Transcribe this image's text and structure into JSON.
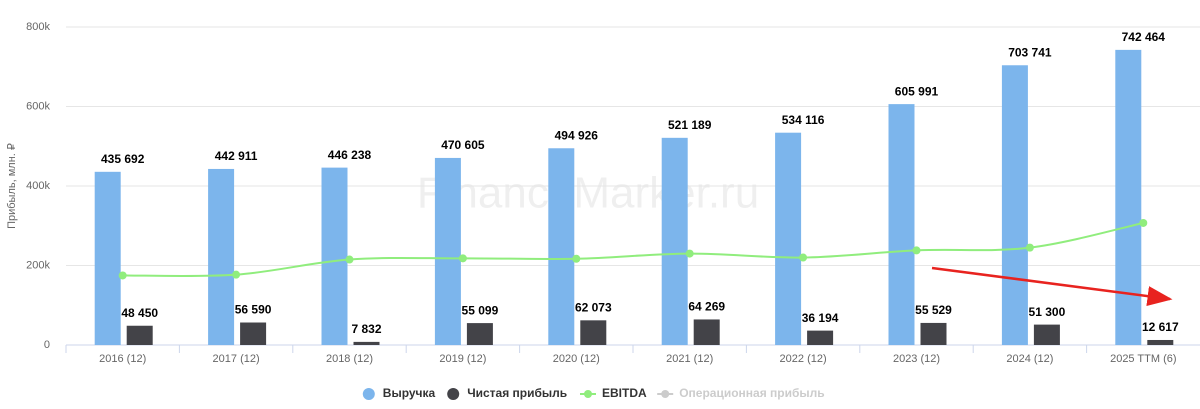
{
  "chart_data": {
    "type": "bar",
    "watermark": "FinanceMarker.ru",
    "y_label": "Прибыль, млн. ₽",
    "categories": [
      "2016 (12)",
      "2017 (12)",
      "2018 (12)",
      "2019 (12)",
      "2020 (12)",
      "2021 (12)",
      "2022 (12)",
      "2023 (12)",
      "2024 (12)",
      "2025 TTM (6)"
    ],
    "series": [
      {
        "name": "Выручка",
        "type": "bar",
        "color": "#7cb5ec",
        "values": [
          435692,
          442911,
          446238,
          470605,
          494926,
          521189,
          534116,
          605991,
          703741,
          742464
        ],
        "value_labels": [
          "435 692",
          "442 911",
          "446 238",
          "470 605",
          "494 926",
          "521 189",
          "534 116",
          "605 991",
          "703 741",
          "742 464"
        ]
      },
      {
        "name": "Чистая прибыль",
        "type": "bar",
        "color": "#434348",
        "values": [
          48450,
          56590,
          7832,
          55099,
          62073,
          64269,
          36194,
          55529,
          51300,
          12617
        ],
        "value_labels": [
          "48 450",
          "56 590",
          "7 832",
          "55 099",
          "62 073",
          "64 269",
          "36 194",
          "55 529",
          "51 300",
          "12 617"
        ]
      },
      {
        "name": "EBITDA",
        "type": "line",
        "color": "#90ed7d",
        "values": [
          175000,
          177000,
          215000,
          218000,
          217000,
          230000,
          220000,
          238000,
          245000,
          307000
        ]
      },
      {
        "name": "Операционная прибыль",
        "type": "line",
        "color": "#cccccc",
        "visible": false,
        "values": [
          null,
          null,
          null,
          null,
          null,
          null,
          null,
          null,
          null,
          null
        ]
      }
    ],
    "ylim": [
      0,
      800000
    ],
    "yticks": [
      {
        "value": 0,
        "label": "0"
      },
      {
        "value": 200000,
        "label": "200k"
      },
      {
        "value": 400000,
        "label": "400k"
      },
      {
        "value": 600000,
        "label": "600k"
      },
      {
        "value": 800000,
        "label": "800k"
      }
    ],
    "grid": true
  }
}
